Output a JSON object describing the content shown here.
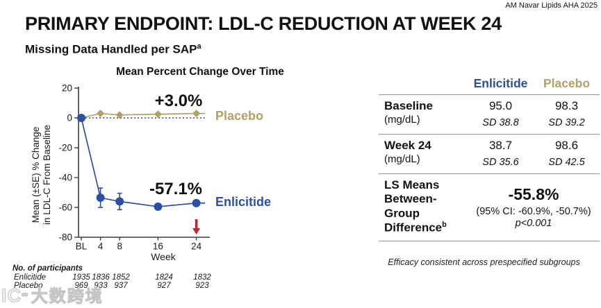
{
  "attribution": "AM Navar Lipids AHA 2025",
  "title": "PRIMARY ENDPOINT: LDL-C REDUCTION AT WEEK 24",
  "subtitle": {
    "text": "Missing Data Handled per SAP",
    "superscript": "a"
  },
  "colors": {
    "enlicitide_blue": "#2b4fa2",
    "placebo_tan": "#b1a164",
    "arrow_red": "#c9202a",
    "table_line_gray": "#949494"
  },
  "chart_data": {
    "type": "line",
    "title": "Mean Percent Change Over Time",
    "xlabel": "Week",
    "ylabel_lines": [
      "Mean (±SE) % Change",
      "in LDL-C From Baseline"
    ],
    "x_ticks": [
      "BL",
      "4",
      "8",
      "16",
      "24"
    ],
    "x_values": [
      0,
      4,
      8,
      16,
      24
    ],
    "y_ticks": [
      20,
      0,
      -20,
      -40,
      -60,
      -80
    ],
    "ylim": [
      -80,
      20
    ],
    "zero_line": "dotted",
    "grid": false,
    "series": [
      {
        "name": "Placebo",
        "color": "#b1a164",
        "marker": "diamond",
        "values": [
          0,
          3,
          2,
          2.5,
          3
        ],
        "se": [
          0,
          0,
          0,
          0,
          0
        ],
        "annotation": "+3.0%"
      },
      {
        "name": "Enlicitide",
        "color": "#2b4fa2",
        "marker": "circle",
        "values": [
          0,
          -53.5,
          -56,
          -59.5,
          -57.1
        ],
        "se": [
          0,
          6.5,
          5.5,
          0,
          0
        ],
        "annotation": "-57.1%"
      }
    ],
    "arrow_marker": {
      "x": 24,
      "color": "#c9202a"
    }
  },
  "participants": {
    "heading": "No. of participants",
    "rows": [
      {
        "label": "Enlicitide",
        "values": [
          "1935",
          "1836",
          "1852",
          "1824",
          "1832"
        ]
      },
      {
        "label": "Placebo",
        "values": [
          "969",
          "933",
          "937",
          "927",
          "923"
        ]
      }
    ]
  },
  "results_table": {
    "columns": [
      "Enlicitide",
      "Placebo"
    ],
    "rows": [
      {
        "label": "Baseline",
        "label2": "(mg/dL)",
        "values": [
          "95.0",
          "98.3"
        ],
        "sd": [
          "SD 38.8",
          "SD 39.2"
        ]
      },
      {
        "label": "Week 24",
        "label2": "(mg/dL)",
        "values": [
          "38.7",
          "98.6"
        ],
        "sd": [
          "SD 35.6",
          "SD 42.5"
        ]
      },
      {
        "label": "LS Means Between-Group Difference",
        "label_sup": "b",
        "merged": {
          "value": "-55.8%",
          "ci": "(95% CI: -60.9%, -50.7%)",
          "p": "p<0.001"
        }
      }
    ]
  },
  "footnote": "Efficacy consistent across prespecified subgroups",
  "watermark": {
    "logo": "IC",
    "sup": "∞",
    "text": "大数跨境"
  }
}
